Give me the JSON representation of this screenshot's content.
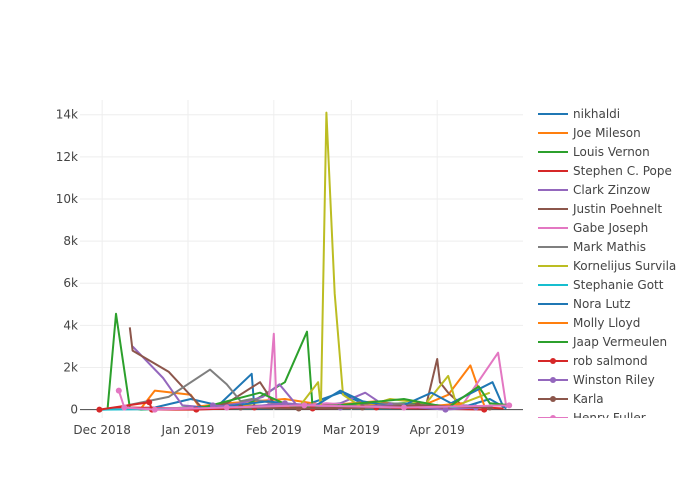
{
  "chart_data": {
    "type": "line",
    "title": "",
    "xlabel": "",
    "ylabel": "",
    "x_range": [
      "2018-11-23",
      "2019-05-02"
    ],
    "x_ticks": [
      {
        "date": "2018-12-01",
        "label": "Dec 2018"
      },
      {
        "date": "2019-01-01",
        "label": "Jan 2019"
      },
      {
        "date": "2019-02-01",
        "label": "Feb 2019"
      },
      {
        "date": "2019-03-01",
        "label": "Mar 2019"
      },
      {
        "date": "2019-04-01",
        "label": "Apr 2019"
      }
    ],
    "ylim": [
      -400,
      14700
    ],
    "y_ticks": [
      {
        "value": 0,
        "label": "0"
      },
      {
        "value": 2000,
        "label": "2k"
      },
      {
        "value": 4000,
        "label": "4k"
      },
      {
        "value": 6000,
        "label": "6k"
      },
      {
        "value": 8000,
        "label": "8k"
      },
      {
        "value": 10000,
        "label": "10k"
      },
      {
        "value": 12000,
        "label": "12k"
      },
      {
        "value": 14000,
        "label": "14k"
      }
    ],
    "grid": true,
    "legend_position": "right",
    "series": [
      {
        "name": "nikhaldi",
        "color": "#1f77b4",
        "markers": false,
        "points": [
          [
            "2018-12-01",
            0
          ],
          [
            "2018-12-20",
            100
          ],
          [
            "2019-01-02",
            500
          ],
          [
            "2019-01-12",
            200
          ],
          [
            "2019-01-24",
            1700
          ],
          [
            "2019-01-25",
            50
          ],
          [
            "2019-02-10",
            100
          ],
          [
            "2019-02-25",
            800
          ],
          [
            "2019-03-05",
            300
          ],
          [
            "2019-03-15",
            200
          ],
          [
            "2019-04-10",
            100
          ],
          [
            "2019-04-20",
            500
          ],
          [
            "2019-04-26",
            50
          ]
        ]
      },
      {
        "name": "Joe Mileson",
        "color": "#ff7f0e",
        "markers": false,
        "points": [
          [
            "2018-12-15",
            50
          ],
          [
            "2018-12-20",
            900
          ],
          [
            "2019-01-02",
            700
          ],
          [
            "2019-01-05",
            150
          ],
          [
            "2019-01-15",
            300
          ],
          [
            "2019-02-05",
            500
          ],
          [
            "2019-02-20",
            200
          ],
          [
            "2019-03-10",
            400
          ],
          [
            "2019-03-25",
            100
          ],
          [
            "2019-04-05",
            700
          ],
          [
            "2019-04-13",
            2100
          ],
          [
            "2019-04-18",
            200
          ]
        ]
      },
      {
        "name": "Louis Vernon",
        "color": "#2ca02c",
        "markers": false,
        "points": [
          [
            "2018-12-03",
            100
          ],
          [
            "2018-12-06",
            4550
          ],
          [
            "2018-12-11",
            100
          ],
          [
            "2018-12-15",
            0
          ],
          [
            "2019-01-01",
            100
          ],
          [
            "2019-01-20",
            50
          ],
          [
            "2019-02-05",
            1300
          ],
          [
            "2019-02-13",
            3700
          ],
          [
            "2019-02-15",
            100
          ],
          [
            "2019-03-01",
            200
          ],
          [
            "2019-03-20",
            300
          ],
          [
            "2019-04-15",
            100
          ]
        ]
      },
      {
        "name": "Stephen C. Pope",
        "color": "#d62728",
        "markers": false,
        "points": [
          [
            "2018-12-01",
            0
          ],
          [
            "2018-12-10",
            100
          ],
          [
            "2019-01-03",
            50
          ],
          [
            "2019-01-20",
            200
          ],
          [
            "2019-02-15",
            100
          ],
          [
            "2019-03-10",
            50
          ],
          [
            "2019-04-05",
            200
          ],
          [
            "2019-04-25",
            50
          ]
        ]
      },
      {
        "name": "Clark Zinzow",
        "color": "#9467bd",
        "markers": false,
        "points": [
          [
            "2018-12-12",
            3000
          ],
          [
            "2018-12-23",
            1500
          ],
          [
            "2018-12-30",
            200
          ],
          [
            "2019-01-08",
            100
          ],
          [
            "2019-01-20",
            300
          ],
          [
            "2019-01-28",
            600
          ],
          [
            "2019-02-03",
            1200
          ],
          [
            "2019-02-10",
            100
          ],
          [
            "2019-02-25",
            300
          ],
          [
            "2019-03-06",
            800
          ],
          [
            "2019-03-14",
            100
          ],
          [
            "2019-04-12",
            200
          ]
        ]
      },
      {
        "name": "Justin Poehnelt",
        "color": "#8c564b",
        "markers": false,
        "points": [
          [
            "2018-12-11",
            3900
          ],
          [
            "2018-12-12",
            2800
          ],
          [
            "2018-12-25",
            1800
          ],
          [
            "2019-01-06",
            100
          ],
          [
            "2019-01-15",
            300
          ],
          [
            "2019-01-27",
            1300
          ],
          [
            "2019-02-02",
            100
          ],
          [
            "2019-02-18",
            200
          ],
          [
            "2019-03-12",
            300
          ],
          [
            "2019-03-28",
            200
          ],
          [
            "2019-04-01",
            2400
          ],
          [
            "2019-04-02",
            1300
          ],
          [
            "2019-04-05",
            800
          ],
          [
            "2019-04-10",
            200
          ]
        ]
      },
      {
        "name": "Gabe Joseph",
        "color": "#e377c2",
        "markers": false,
        "points": [
          [
            "2018-12-01",
            0
          ],
          [
            "2018-12-20",
            50
          ],
          [
            "2019-01-10",
            100
          ],
          [
            "2019-01-30",
            200
          ],
          [
            "2019-02-01",
            3600
          ],
          [
            "2019-02-02",
            100
          ],
          [
            "2019-02-20",
            300
          ],
          [
            "2019-03-15",
            100
          ],
          [
            "2019-04-10",
            200
          ],
          [
            "2019-04-23",
            2700
          ],
          [
            "2019-04-26",
            100
          ]
        ]
      },
      {
        "name": "Mark Mathis",
        "color": "#7f7f7f",
        "markers": false,
        "points": [
          [
            "2018-12-10",
            200
          ],
          [
            "2018-12-25",
            600
          ],
          [
            "2019-01-09",
            1900
          ],
          [
            "2019-01-15",
            1200
          ],
          [
            "2019-01-20",
            400
          ],
          [
            "2019-01-24",
            500
          ],
          [
            "2019-02-05",
            200
          ],
          [
            "2019-02-20",
            100
          ],
          [
            "2019-03-15",
            300
          ],
          [
            "2019-04-10",
            100
          ]
        ]
      },
      {
        "name": "Kornelijus Survila",
        "color": "#bcbd22",
        "markers": false,
        "points": [
          [
            "2019-01-10",
            100
          ],
          [
            "2019-01-25",
            200
          ],
          [
            "2019-02-10",
            100
          ],
          [
            "2019-02-17",
            1300
          ],
          [
            "2019-02-18",
            100
          ],
          [
            "2019-02-20",
            14100
          ],
          [
            "2019-02-23",
            5500
          ],
          [
            "2019-02-26",
            700
          ],
          [
            "2019-03-05",
            100
          ],
          [
            "2019-03-15",
            500
          ],
          [
            "2019-03-28",
            300
          ],
          [
            "2019-04-05",
            1600
          ],
          [
            "2019-04-08",
            200
          ],
          [
            "2019-04-20",
            800
          ]
        ]
      },
      {
        "name": "Stephanie Gott",
        "color": "#17becf",
        "markers": false,
        "points": [
          [
            "2018-12-01",
            0
          ],
          [
            "2019-01-15",
            50
          ],
          [
            "2019-02-10",
            100
          ],
          [
            "2019-03-10",
            50
          ],
          [
            "2019-03-25",
            100
          ],
          [
            "2019-04-15",
            50
          ]
        ]
      },
      {
        "name": "Nora Lutz",
        "color": "#1f77b4",
        "markers": false,
        "points": [
          [
            "2019-01-03",
            100
          ],
          [
            "2019-01-18",
            200
          ],
          [
            "2019-01-30",
            400
          ],
          [
            "2019-02-15",
            100
          ],
          [
            "2019-02-25",
            900
          ],
          [
            "2019-03-05",
            400
          ],
          [
            "2019-03-18",
            100
          ],
          [
            "2019-03-30",
            800
          ],
          [
            "2019-04-06",
            300
          ],
          [
            "2019-04-21",
            1300
          ],
          [
            "2019-04-25",
            100
          ]
        ]
      },
      {
        "name": "Molly Lloyd",
        "color": "#ff7f0e",
        "markers": false,
        "points": [
          [
            "2019-01-14",
            100
          ],
          [
            "2019-01-30",
            200
          ],
          [
            "2019-02-15",
            50
          ],
          [
            "2019-03-10",
            200
          ],
          [
            "2019-03-25",
            100
          ],
          [
            "2019-04-10",
            300
          ]
        ]
      },
      {
        "name": "Jaap Vermeulen",
        "color": "#2ca02c",
        "markers": false,
        "points": [
          [
            "2019-01-05",
            50
          ],
          [
            "2019-01-27",
            800
          ],
          [
            "2019-02-08",
            100
          ],
          [
            "2019-02-24",
            200
          ],
          [
            "2019-03-20",
            500
          ],
          [
            "2019-04-05",
            100
          ],
          [
            "2019-04-16",
            1100
          ],
          [
            "2019-04-20",
            300
          ],
          [
            "2019-04-28",
            200
          ]
        ]
      },
      {
        "name": "rob salmond",
        "color": "#d62728",
        "markers": true,
        "points": [
          [
            "2018-11-30",
            0
          ],
          [
            "2018-12-18",
            350
          ],
          [
            "2018-12-19",
            0
          ],
          [
            "2019-01-04",
            0
          ],
          [
            "2019-01-25",
            100
          ],
          [
            "2019-02-15",
            50
          ],
          [
            "2019-03-10",
            100
          ],
          [
            "2019-04-18",
            0
          ]
        ]
      },
      {
        "name": "Winston Riley",
        "color": "#9467bd",
        "markers": true,
        "points": [
          [
            "2019-01-10",
            200
          ],
          [
            "2019-01-20",
            100
          ],
          [
            "2019-02-05",
            300
          ],
          [
            "2019-02-25",
            100
          ],
          [
            "2019-03-15",
            200
          ],
          [
            "2019-04-04",
            0
          ],
          [
            "2019-04-15",
            100
          ]
        ]
      },
      {
        "name": "Karla",
        "color": "#8c564b",
        "markers": true,
        "points": [
          [
            "2019-01-20",
            100
          ],
          [
            "2019-02-10",
            50
          ],
          [
            "2019-03-05",
            100
          ],
          [
            "2019-03-25",
            200
          ],
          [
            "2019-04-20",
            100
          ]
        ]
      },
      {
        "name": "Henry Fuller",
        "color": "#e377c2",
        "markers": true,
        "points": [
          [
            "2018-12-07",
            900
          ],
          [
            "2018-12-09",
            100
          ],
          [
            "2018-12-20",
            0
          ],
          [
            "2019-01-15",
            100
          ],
          [
            "2019-02-12",
            200
          ],
          [
            "2019-03-20",
            100
          ],
          [
            "2019-04-27",
            200
          ]
        ]
      }
    ]
  }
}
